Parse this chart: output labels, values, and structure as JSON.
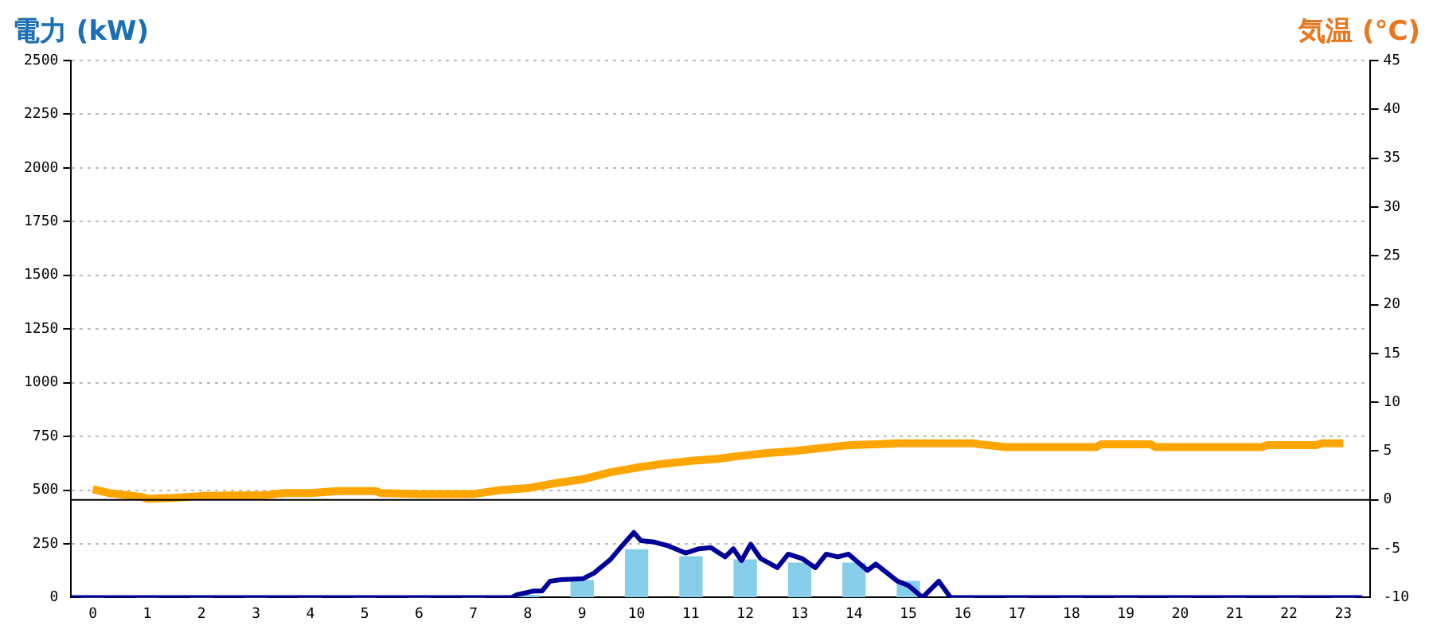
{
  "chart_data": {
    "type": "bar",
    "ylabel": "電力 (kW)",
    "y2label": "気温 (°C)",
    "xlim": [
      -0.4,
      23.5
    ],
    "xticks": [
      0,
      1,
      2,
      3,
      4,
      5,
      6,
      7,
      8,
      9,
      10,
      11,
      12,
      13,
      14,
      15,
      16,
      17,
      18,
      19,
      20,
      21,
      22,
      23
    ],
    "ylim": [
      0,
      2500
    ],
    "yticks": [
      0,
      250,
      500,
      750,
      1000,
      1250,
      1500,
      1750,
      2000,
      2250,
      2500
    ],
    "y2lim": [
      -10,
      45
    ],
    "y2ticks": [
      -10,
      -5,
      0,
      5,
      10,
      15,
      20,
      25,
      30,
      35,
      40,
      45
    ],
    "grid": "y",
    "legend": false,
    "ref_lines": [
      {
        "axis": "y2",
        "value": 0,
        "color": "#000000"
      }
    ],
    "series": [
      {
        "color": "#87ceeb",
        "x": [
          0,
          1,
          2,
          3,
          4,
          5,
          6,
          7,
          8,
          9,
          10,
          11,
          12,
          13,
          14,
          15,
          16,
          17,
          18,
          19,
          20,
          21,
          22,
          23
        ],
        "values": [
          0,
          0,
          0,
          0,
          0,
          0,
          0,
          0,
          10,
          80,
          222,
          190,
          175,
          160,
          160,
          75,
          0,
          0,
          0,
          0,
          0,
          0,
          0,
          0
        ]
      },
      {
        "type": "line",
        "color": "#000099",
        "x": [
          -0.4,
          7.7,
          7.8,
          8.1,
          8.26,
          8.41,
          8.61,
          9.02,
          9.22,
          9.52,
          9.73,
          9.95,
          10.08,
          10.33,
          10.59,
          10.9,
          11.15,
          11.37,
          11.63,
          11.78,
          11.93,
          12.1,
          12.28,
          12.59,
          12.79,
          13.04,
          13.29,
          13.49,
          13.7,
          13.9,
          14.25,
          14.4,
          14.8,
          15.0,
          15.26,
          15.56,
          15.76,
          15.8,
          23.35
        ],
        "values": [
          0,
          0,
          13,
          30,
          30,
          76,
          83,
          88,
          114,
          177,
          240,
          303,
          265,
          258,
          240,
          207,
          227,
          232,
          189,
          227,
          172,
          248,
          182,
          139,
          202,
          182,
          139,
          202,
          189,
          202,
          126,
          156,
          76,
          56,
          0,
          76,
          5,
          0,
          0
        ]
      },
      {
        "type": "line",
        "color": "#ffa500",
        "axis": "y2",
        "x": [
          0,
          0.3,
          0.9,
          1,
          1.5,
          2,
          3.2,
          3.5,
          4,
          4.5,
          5.2,
          5.3,
          6,
          6.5,
          7,
          7.5,
          8,
          8.5,
          9,
          9.5,
          10,
          10.5,
          11,
          11.5,
          11.9,
          12.4,
          12.9,
          13.4,
          13.9,
          14.4,
          14.8,
          16.2,
          16.3,
          16.8,
          18.45,
          18.55,
          19.45,
          19.55,
          21.5,
          21.6,
          22.5,
          22.6,
          23
        ],
        "values": [
          1.1,
          0.7,
          0.3,
          0.1,
          0.2,
          0.4,
          0.5,
          0.7,
          0.7,
          0.9,
          0.9,
          0.7,
          0.6,
          0.6,
          0.6,
          1.0,
          1.2,
          1.7,
          2.1,
          2.8,
          3.3,
          3.7,
          4.0,
          4.2,
          4.5,
          4.8,
          5.0,
          5.3,
          5.6,
          5.7,
          5.8,
          5.8,
          5.7,
          5.4,
          5.4,
          5.7,
          5.7,
          5.4,
          5.4,
          5.6,
          5.6,
          5.8,
          5.8
        ]
      }
    ]
  }
}
